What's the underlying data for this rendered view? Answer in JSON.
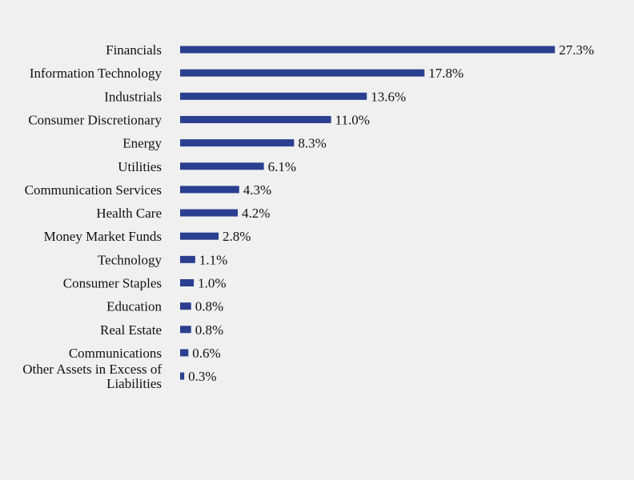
{
  "chart_data": {
    "type": "bar",
    "orientation": "horizontal",
    "title": "",
    "xlabel": "",
    "ylabel": "",
    "grid": false,
    "legend": "none",
    "bar_color": "#2a3f8f",
    "categories": [
      "Financials",
      "Information Technology",
      "Industrials",
      "Consumer Discretionary",
      "Energy",
      "Utilities",
      "Communication Services",
      "Health Care",
      "Money Market Funds",
      "Technology",
      "Consumer Staples",
      "Education",
      "Real Estate",
      "Communications",
      "Other Assets in Excess of Liabilities"
    ],
    "values": [
      27.3,
      17.8,
      13.6,
      11.0,
      8.3,
      6.1,
      4.3,
      4.2,
      2.8,
      1.1,
      1.0,
      0.8,
      0.8,
      0.6,
      0.3
    ],
    "value_labels": [
      "27.3%",
      "17.8%",
      "13.6%",
      "11.0%",
      "8.3%",
      "6.1%",
      "4.3%",
      "4.2%",
      "2.8%",
      "1.1%",
      "1.0%",
      "0.8%",
      "0.8%",
      "0.6%",
      "0.3%"
    ],
    "category_lines": [
      [
        "Financials"
      ],
      [
        "Information Technology"
      ],
      [
        "Industrials"
      ],
      [
        "Consumer Discretionary"
      ],
      [
        "Energy"
      ],
      [
        "Utilities"
      ],
      [
        "Communication Services"
      ],
      [
        "Health Care"
      ],
      [
        "Money Market Funds"
      ],
      [
        "Technology"
      ],
      [
        "Consumer Staples"
      ],
      [
        "Education"
      ],
      [
        "Real Estate"
      ],
      [
        "Communications"
      ],
      [
        "Other Assets in Excess of",
        "Liabilities"
      ]
    ]
  }
}
